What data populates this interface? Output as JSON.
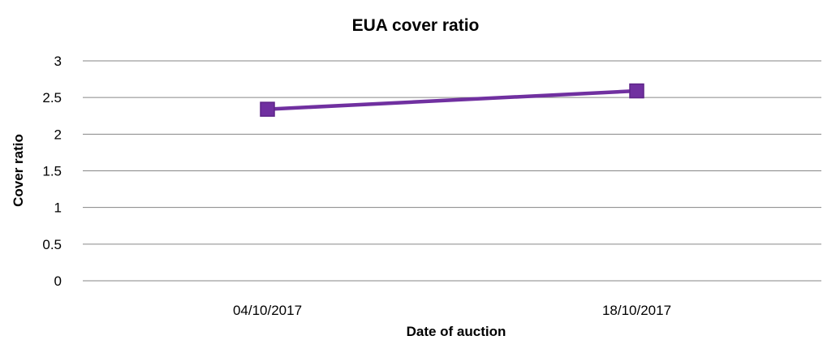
{
  "chart_data": {
    "type": "line",
    "title": "EUA cover ratio",
    "xlabel": "Date of auction",
    "ylabel": "Cover ratio",
    "categories": [
      "04/10/2017",
      "18/10/2017"
    ],
    "series": [
      {
        "values": [
          2.34,
          2.59
        ],
        "color": "#7030A0",
        "marker": "square"
      }
    ],
    "ylim": [
      0,
      3
    ],
    "yticks": [
      "0",
      "0.5",
      "1",
      "1.5",
      "2",
      "2.5",
      "3"
    ],
    "grid": true,
    "legend": "none"
  }
}
